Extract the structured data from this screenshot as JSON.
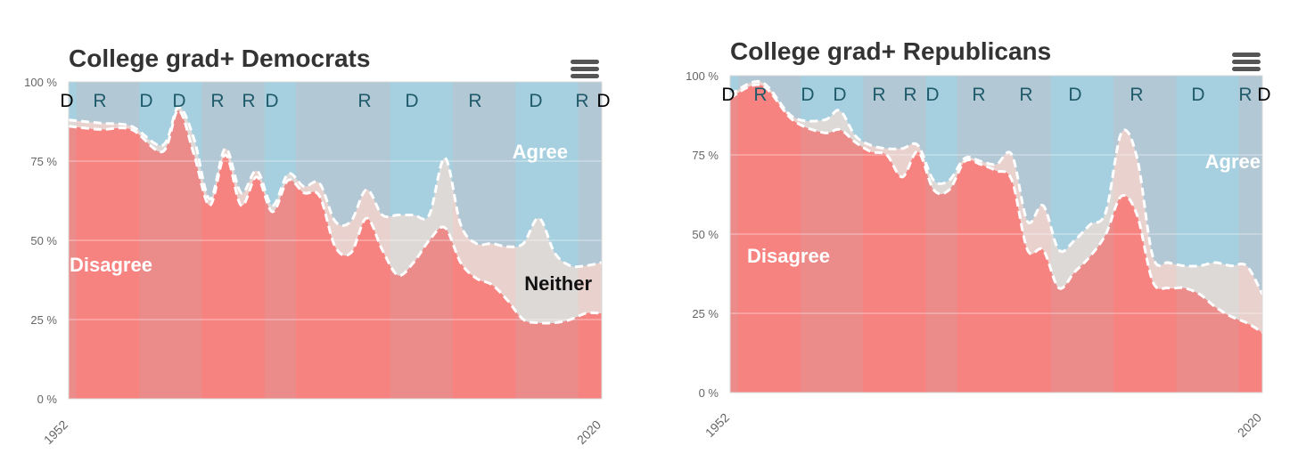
{
  "chart_data": [
    {
      "type": "area",
      "title": "College grad+ Democrats",
      "xlabel": "",
      "ylabel": "",
      "x_tick_labels": [
        "1952",
        "2020"
      ],
      "y_tick_labels": [
        "0 %",
        "25 %",
        "50 %",
        "75 %",
        "100 %"
      ],
      "xlim": [
        1952,
        2020
      ],
      "ylim": [
        0,
        100
      ],
      "stacking": "percent",
      "x": [
        1952,
        1956,
        1960,
        1964,
        1966,
        1968,
        1970,
        1972,
        1974,
        1976,
        1978,
        1980,
        1982,
        1984,
        1986,
        1988,
        1990,
        1992,
        1994,
        1996,
        1998,
        2000,
        2002,
        2004,
        2006,
        2008,
        2010,
        2012,
        2014,
        2016,
        2018,
        2020
      ],
      "series": [
        {
          "name": "Disagree",
          "color": "#fa7c78",
          "values": [
            86,
            85,
            85,
            78,
            91,
            77,
            61,
            77,
            61,
            70,
            59,
            69,
            65,
            64,
            48,
            46,
            57,
            47,
            39,
            43,
            50,
            54,
            43,
            38,
            36,
            31,
            25,
            24,
            24,
            25,
            27,
            27
          ]
        },
        {
          "name": "Neither",
          "color": "#eadbd6",
          "values": [
            2,
            2,
            1,
            2,
            1,
            5,
            2,
            2,
            4,
            2,
            2,
            2,
            2,
            4,
            8,
            10,
            9,
            11,
            19,
            15,
            8,
            22,
            12,
            11,
            13,
            17,
            24,
            33,
            22,
            17,
            15,
            16
          ]
        },
        {
          "name": "Agree",
          "color": "#a7d0e0",
          "values": [
            12,
            13,
            14,
            20,
            8,
            18,
            37,
            21,
            35,
            28,
            39,
            29,
            33,
            32,
            44,
            44,
            34,
            42,
            42,
            42,
            42,
            24,
            45,
            51,
            51,
            52,
            51,
            43,
            54,
            58,
            58,
            57
          ]
        }
      ],
      "legend": "none (labels drawn inside the areas)",
      "series_labels": [
        "Disagree",
        "Neither",
        "Agree"
      ],
      "grid": true,
      "party_labels": [
        "D",
        "R",
        "D",
        "D",
        "R",
        "R",
        "D",
        "R",
        "D",
        "R",
        "D",
        "R",
        "D"
      ],
      "shading": [
        {
          "from": 1952,
          "to": 1953,
          "color": "#a7d0e0"
        },
        {
          "from": 1953,
          "to": 1961,
          "color": "#e9a4a5"
        },
        {
          "from": 1961,
          "to": 1969,
          "color": "#a7d0e0"
        },
        {
          "from": 1969,
          "to": 1977,
          "color": "#e9a4a5"
        },
        {
          "from": 1977,
          "to": 1981,
          "color": "#a7d0e0"
        },
        {
          "from": 1981,
          "to": 1993,
          "color": "#e9a4a5"
        },
        {
          "from": 1993,
          "to": 2001,
          "color": "#a7d0e0"
        },
        {
          "from": 2001,
          "to": 2009,
          "color": "#e9a4a5"
        },
        {
          "from": 2009,
          "to": 2017,
          "color": "#a7d0e0"
        },
        {
          "from": 2017,
          "to": 2020,
          "color": "#e9a4a5"
        }
      ]
    },
    {
      "type": "area",
      "title": "College grad+ Republicans",
      "xlabel": "",
      "ylabel": "",
      "x_tick_labels": [
        "1952",
        "2020"
      ],
      "y_tick_labels": [
        "0 %",
        "25 %",
        "50 %",
        "75 %",
        "100 %"
      ],
      "xlim": [
        1952,
        2020
      ],
      "ylim": [
        0,
        100
      ],
      "stacking": "percent",
      "x": [
        1952,
        1956,
        1960,
        1964,
        1966,
        1968,
        1970,
        1972,
        1974,
        1976,
        1978,
        1980,
        1982,
        1984,
        1986,
        1988,
        1990,
        1992,
        1994,
        1996,
        1998,
        2000,
        2002,
        2004,
        2006,
        2008,
        2010,
        2012,
        2014,
        2016,
        2018,
        2020
      ],
      "series": [
        {
          "name": "Disagree",
          "color": "#fa7c78",
          "values": [
            93,
            97,
            86,
            82,
            83,
            79,
            76,
            75,
            68,
            76,
            64,
            64,
            73,
            72,
            70,
            67,
            45,
            45,
            33,
            38,
            43,
            50,
            62,
            56,
            35,
            33,
            33,
            31,
            27,
            24,
            22,
            19
          ]
        },
        {
          "name": "Neither",
          "color": "#eadbd6",
          "values": [
            1,
            1,
            1,
            4,
            6,
            2,
            2,
            2,
            9,
            2,
            3,
            3,
            1,
            1,
            2,
            8,
            9,
            14,
            12,
            10,
            10,
            7,
            20,
            18,
            8,
            8,
            7,
            9,
            14,
            16,
            18,
            12
          ]
        },
        {
          "name": "Agree",
          "color": "#a7d0e0",
          "values": [
            6,
            2,
            13,
            14,
            11,
            19,
            22,
            23,
            23,
            22,
            33,
            33,
            26,
            27,
            28,
            25,
            46,
            41,
            55,
            52,
            47,
            43,
            18,
            26,
            57,
            59,
            60,
            60,
            59,
            60,
            60,
            69
          ]
        }
      ],
      "legend": "none (labels drawn inside the areas)",
      "series_labels": [
        "Disagree",
        "Agree"
      ],
      "grid": true,
      "party_labels": [
        "D",
        "R",
        "D",
        "D",
        "R",
        "R",
        "D",
        "R",
        "R",
        "D",
        "R",
        "D",
        "R",
        "D"
      ],
      "shading": [
        {
          "from": 1952,
          "to": 1953,
          "color": "#a7d0e0"
        },
        {
          "from": 1953,
          "to": 1961,
          "color": "#e9a4a5"
        },
        {
          "from": 1961,
          "to": 1969,
          "color": "#a7d0e0"
        },
        {
          "from": 1969,
          "to": 1977,
          "color": "#e9a4a5"
        },
        {
          "from": 1977,
          "to": 1981,
          "color": "#a7d0e0"
        },
        {
          "from": 1981,
          "to": 1993,
          "color": "#e9a4a5"
        },
        {
          "from": 1993,
          "to": 2001,
          "color": "#a7d0e0"
        },
        {
          "from": 2001,
          "to": 2009,
          "color": "#e9a4a5"
        },
        {
          "from": 2009,
          "to": 2017,
          "color": "#a7d0e0"
        },
        {
          "from": 2017,
          "to": 2020,
          "color": "#e9a4a5"
        }
      ]
    }
  ]
}
